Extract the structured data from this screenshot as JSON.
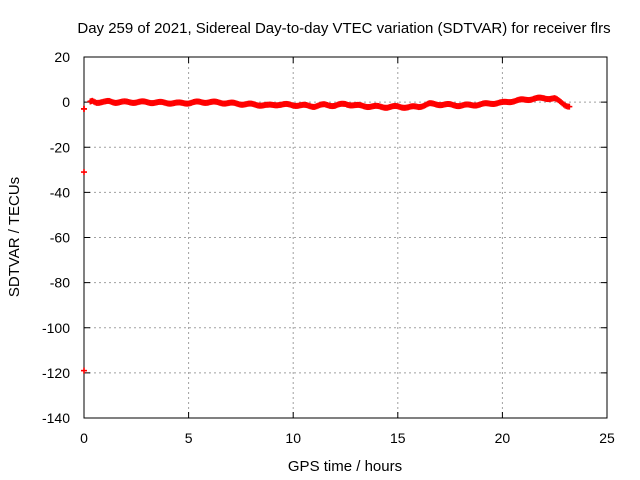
{
  "chart_data": {
    "type": "scatter",
    "title": "Day 259 of 2021, Sidereal Day-to-day VTEC variation (SDTVAR) for receiver flrs",
    "xlabel": "GPS time / hours",
    "ylabel": "SDTVAR / TECUs",
    "xlim": [
      0,
      25
    ],
    "ylim": [
      -140,
      20
    ],
    "xticks": [
      0,
      5,
      10,
      15,
      20,
      25
    ],
    "yticks": [
      20,
      0,
      -20,
      -40,
      -60,
      -80,
      -100,
      -120,
      -140
    ],
    "grid": true,
    "series_color": "#ff0000",
    "series": [
      {
        "marker": "plus",
        "x": [
          0.0,
          0.0,
          0.0,
          0.3,
          0.4,
          0.6,
          0.8,
          1.0,
          1.2,
          1.5,
          1.8,
          2.0,
          2.5,
          3.0,
          3.5,
          4.0,
          4.5,
          5.0,
          5.5,
          6.0,
          6.5,
          7.0,
          7.5,
          8.0,
          8.5,
          8.8,
          9.3,
          9.8,
          10.5,
          11.0,
          11.5,
          12.0,
          12.5,
          13.0,
          13.5,
          14.0,
          14.5,
          15.0,
          15.5,
          16.0,
          16.5,
          17.0,
          17.5,
          18.0,
          18.5,
          19.0,
          19.5,
          20.0,
          20.5,
          21.0,
          21.5,
          22.0,
          22.5,
          22.8,
          23.0,
          23.2
        ],
        "y": [
          -3,
          -31,
          -119,
          0,
          0.5,
          0,
          0,
          0,
          0.3,
          0,
          0,
          0,
          0,
          0,
          -0.2,
          -0.3,
          -0.5,
          -0.3,
          0,
          0,
          -0.2,
          -0.5,
          -0.8,
          -1,
          -1.3,
          -1.5,
          -1,
          -1.2,
          -1.5,
          -1.8,
          -1.2,
          -1.5,
          -0.8,
          -1.5,
          -1.8,
          -2,
          -2.2,
          -2,
          -2.3,
          -2,
          -0.8,
          -1,
          -1.2,
          -1.5,
          -1.3,
          -1,
          -0.5,
          -0.3,
          0.5,
          1,
          1.5,
          1.8,
          1.5,
          0,
          -1.2,
          -2
        ]
      }
    ]
  }
}
